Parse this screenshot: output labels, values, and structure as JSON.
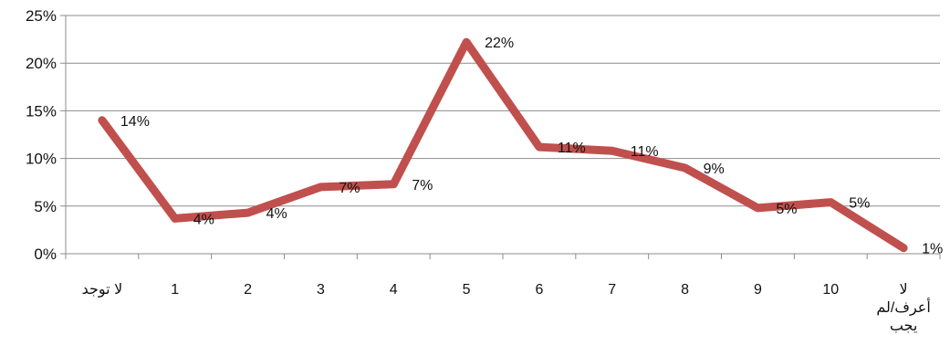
{
  "chart_data": {
    "type": "line",
    "categories": [
      "لا توجد",
      "1",
      "2",
      "3",
      "4",
      "5",
      "6",
      "7",
      "8",
      "9",
      "10",
      "لا أعرف/لم يجب"
    ],
    "category_lines": [
      [
        "لا توجد"
      ],
      [
        "1"
      ],
      [
        "2"
      ],
      [
        "3"
      ],
      [
        "4"
      ],
      [
        "5"
      ],
      [
        "6"
      ],
      [
        "7"
      ],
      [
        "8"
      ],
      [
        "9"
      ],
      [
        "10"
      ],
      [
        "لا",
        "أعرف/لم",
        "يجب"
      ]
    ],
    "series": [
      {
        "values": [
          14,
          3.7,
          4.3,
          7,
          7.3,
          22.2,
          11.2,
          10.8,
          9,
          4.8,
          5.4,
          0.6
        ]
      }
    ],
    "data_labels": [
      "14%",
      "4%",
      "4%",
      "7%",
      "7%",
      "22%",
      "11%",
      "11%",
      "9%",
      "5%",
      "5%",
      "1%"
    ],
    "yticks": [
      "0%",
      "5%",
      "10%",
      "15%",
      "20%",
      "25%"
    ],
    "ylim": [
      0,
      25
    ],
    "title": "",
    "xlabel": "",
    "ylabel": "",
    "grid": true,
    "legend": "none",
    "colors": {
      "line": "#c0504d",
      "grid": "#8c8c8c",
      "axis": "#8c8c8c"
    }
  }
}
